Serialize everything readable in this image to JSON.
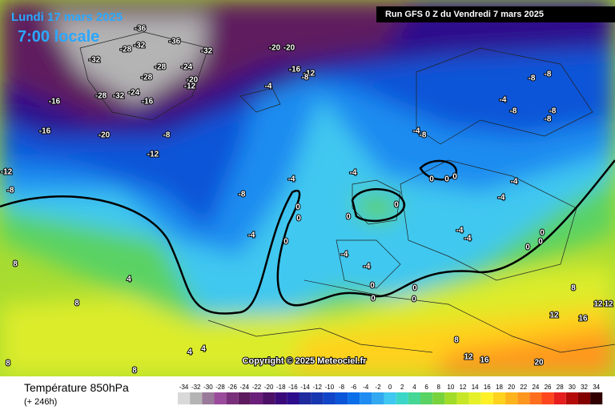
{
  "header": {
    "date": "Lundi 17 mars 2025",
    "time": "7:00 locale",
    "run_info": "Run GFS 0 Z du Vendredi 7 mars 2025"
  },
  "footer": {
    "title": "Température 850hPa",
    "lead_time": "(+ 246h)",
    "copyright": "Copyright © 2025 Meteociel.fr"
  },
  "legend": {
    "values": [
      -34,
      -32,
      -30,
      -28,
      -26,
      -24,
      -22,
      -20,
      -18,
      -16,
      -14,
      -12,
      -10,
      -8,
      -6,
      -4,
      -2,
      0,
      2,
      4,
      6,
      8,
      10,
      12,
      14,
      16,
      18,
      20,
      22,
      24,
      26,
      28,
      30,
      32,
      34
    ],
    "colors": [
      "#d9d9d9",
      "#b4b4b4",
      "#9a7a9a",
      "#9b4b9b",
      "#7a2f7a",
      "#5e1a5e",
      "#6a1f7a",
      "#4c1066",
      "#3b0a7a",
      "#2e0d8c",
      "#1e2a9e",
      "#1637b0",
      "#1045c8",
      "#0a55d8",
      "#0a6ee8",
      "#1e8cf0",
      "#32a8f0",
      "#40c8f0",
      "#3cd6c8",
      "#46d696",
      "#5ad264",
      "#78d23c",
      "#a0dc28",
      "#c8e628",
      "#e6f028",
      "#fff028",
      "#ffd21e",
      "#ffb41e",
      "#ff961e",
      "#ff6e1e",
      "#ff461e",
      "#e61e1e",
      "#b40a0a",
      "#820000",
      "#300000"
    ]
  },
  "contour_labels": [
    -36,
    -32,
    -28,
    -36,
    -32,
    -28,
    -24,
    -20,
    -12,
    -28,
    -32,
    -28,
    -32,
    -24,
    -16,
    -16,
    -20,
    -16,
    -8,
    -12,
    -8,
    -4,
    -12,
    -8,
    -20,
    -20,
    -16,
    -12,
    -8,
    -4,
    -8,
    -8,
    -4,
    -8,
    -8,
    -8,
    -4,
    -8,
    -4,
    -4,
    0,
    0,
    0,
    0,
    0,
    0,
    0,
    0,
    -4,
    -4,
    -4,
    -4,
    0,
    0,
    0,
    0,
    0,
    0,
    0,
    -4,
    -4,
    4,
    8,
    8,
    8,
    12,
    12,
    12,
    16,
    20,
    16,
    12,
    8,
    4,
    4,
    8,
    8
  ]
}
